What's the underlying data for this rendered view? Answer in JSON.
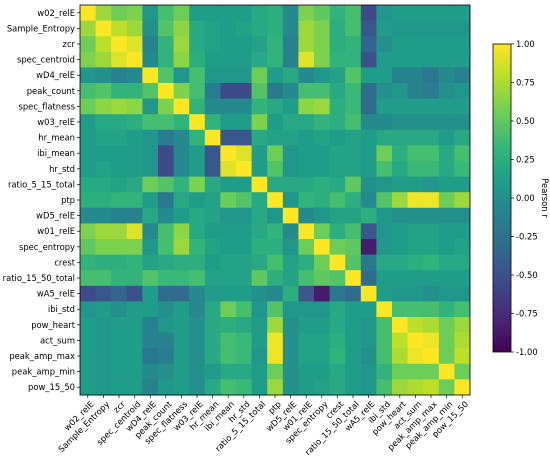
{
  "chart_data": {
    "type": "heatmap",
    "title": "",
    "labels": [
      "w02_relE",
      "Sample_Entropy",
      "zcr",
      "spec_centroid",
      "wD4_relE",
      "peak_count",
      "spec_flatness",
      "w03_relE",
      "hr_mean",
      "ibi_mean",
      "hr_std",
      "ratio_5_15_total",
      "ptp",
      "wD5_relE",
      "w01_relE",
      "spec_entropy",
      "crest",
      "ratio_15_50_total",
      "wA5_relE",
      "ibi_std",
      "pow_heart",
      "act_sum",
      "peak_amp_max",
      "peak_amp_min",
      "pow_15_50"
    ],
    "colorbar": {
      "label": "Pearson r",
      "vmin": -1.0,
      "vmax": 1.0,
      "ticks": [
        "1.00",
        "0.75",
        "0.50",
        "0.25",
        "0.00",
        "-0.25",
        "-0.50",
        "-0.75",
        "-1.00"
      ],
      "colormap": "viridis",
      "colors": [
        "#440154",
        "#482878",
        "#3e4989",
        "#31688e",
        "#26828e",
        "#1f9e89",
        "#35b779",
        "#6ece58",
        "#b5de2b",
        "#fde725"
      ]
    },
    "matrix": [
      [
        1.0,
        0.7,
        0.55,
        0.6,
        0.05,
        0.4,
        0.55,
        0.1,
        0.1,
        0.1,
        0.1,
        0.2,
        0.25,
        -0.05,
        0.6,
        0.5,
        0.3,
        0.4,
        -0.55,
        0.05,
        0.1,
        0.1,
        0.1,
        0.1,
        0.1
      ],
      [
        0.7,
        1.0,
        0.8,
        0.7,
        0.0,
        0.45,
        0.65,
        0.2,
        0.15,
        0.1,
        0.15,
        0.2,
        0.25,
        -0.05,
        0.7,
        0.6,
        0.25,
        0.4,
        -0.45,
        0.1,
        0.05,
        0.05,
        0.05,
        0.05,
        0.05
      ],
      [
        0.55,
        0.8,
        1.0,
        0.9,
        -0.1,
        0.3,
        0.7,
        0.2,
        0.15,
        0.1,
        0.1,
        0.15,
        0.3,
        -0.1,
        0.7,
        0.6,
        0.25,
        0.3,
        -0.35,
        0.0,
        0.1,
        0.1,
        0.1,
        0.1,
        0.1
      ],
      [
        0.6,
        0.7,
        0.9,
        1.0,
        -0.05,
        0.3,
        0.65,
        0.25,
        0.1,
        0.1,
        0.1,
        0.2,
        0.3,
        -0.1,
        0.9,
        0.6,
        0.3,
        0.3,
        -0.5,
        0.1,
        0.1,
        0.1,
        0.1,
        0.1,
        0.1
      ],
      [
        0.05,
        0.0,
        -0.1,
        -0.05,
        1.0,
        0.45,
        0.05,
        0.4,
        0.05,
        0.05,
        0.05,
        0.55,
        0.1,
        0.2,
        -0.05,
        0.05,
        0.15,
        0.45,
        0.1,
        0.1,
        -0.1,
        -0.1,
        -0.2,
        -0.05,
        -0.1
      ],
      [
        0.4,
        0.45,
        0.3,
        0.3,
        0.45,
        1.0,
        0.6,
        0.4,
        -0.15,
        -0.55,
        -0.55,
        0.45,
        -0.2,
        -0.05,
        0.4,
        0.4,
        0.2,
        0.35,
        -0.3,
        0.0,
        0.05,
        -0.1,
        -0.15,
        0.0,
        0.05
      ],
      [
        0.55,
        0.65,
        0.7,
        0.65,
        0.05,
        0.6,
        1.0,
        0.3,
        -0.05,
        -0.05,
        -0.05,
        0.3,
        0.2,
        0.1,
        0.65,
        0.7,
        0.25,
        0.35,
        -0.3,
        0.1,
        0.1,
        0.1,
        0.1,
        0.1,
        0.1
      ],
      [
        0.1,
        0.2,
        0.2,
        0.25,
        0.4,
        0.4,
        0.3,
        1.0,
        0.3,
        0.1,
        0.1,
        0.6,
        0.1,
        0.2,
        0.2,
        0.3,
        0.25,
        0.4,
        -0.05,
        -0.05,
        0.0,
        0.0,
        0.0,
        0.0,
        0.0
      ],
      [
        0.1,
        0.15,
        0.15,
        0.1,
        0.05,
        -0.15,
        -0.05,
        0.3,
        1.0,
        -0.45,
        -0.45,
        0.2,
        0.15,
        0.15,
        0.1,
        0.15,
        0.1,
        0.15,
        0.1,
        0.2,
        0.2,
        0.2,
        0.2,
        0.1,
        0.2
      ],
      [
        0.1,
        0.1,
        0.1,
        0.1,
        0.05,
        -0.55,
        -0.05,
        0.1,
        -0.45,
        1.0,
        0.9,
        0.1,
        0.55,
        0.05,
        0.1,
        0.1,
        0.15,
        0.15,
        0.1,
        0.55,
        0.25,
        0.4,
        0.4,
        0.2,
        0.4
      ],
      [
        0.1,
        0.15,
        0.1,
        0.1,
        0.05,
        -0.55,
        -0.05,
        0.1,
        -0.45,
        0.9,
        1.0,
        0.1,
        0.45,
        0.05,
        0.1,
        0.1,
        0.15,
        0.15,
        0.1,
        0.4,
        0.2,
        0.35,
        0.35,
        0.2,
        0.35
      ],
      [
        0.2,
        0.2,
        0.15,
        0.2,
        0.55,
        0.45,
        0.3,
        0.6,
        0.2,
        0.1,
        0.1,
        1.0,
        0.2,
        0.2,
        0.2,
        0.25,
        0.2,
        0.5,
        0.0,
        0.05,
        0.1,
        0.1,
        0.05,
        0.1,
        0.1
      ],
      [
        0.25,
        0.25,
        0.3,
        0.3,
        0.1,
        -0.2,
        0.2,
        0.1,
        0.15,
        0.55,
        0.45,
        0.2,
        1.0,
        0.05,
        0.3,
        0.25,
        0.4,
        0.25,
        -0.05,
        0.45,
        0.7,
        0.95,
        0.95,
        0.55,
        0.7
      ],
      [
        -0.05,
        -0.05,
        -0.1,
        -0.1,
        0.2,
        -0.05,
        0.1,
        0.2,
        0.15,
        0.05,
        0.05,
        0.2,
        0.05,
        1.0,
        -0.05,
        0.05,
        0.15,
        0.15,
        0.25,
        0.05,
        0.0,
        0.0,
        0.0,
        0.0,
        0.0
      ],
      [
        0.6,
        0.7,
        0.7,
        0.9,
        -0.05,
        0.4,
        0.65,
        0.2,
        0.1,
        0.1,
        0.1,
        0.2,
        0.3,
        -0.05,
        1.0,
        0.55,
        0.25,
        0.4,
        -0.45,
        0.05,
        0.1,
        0.15,
        0.15,
        0.1,
        0.1
      ],
      [
        0.5,
        0.6,
        0.6,
        0.6,
        0.05,
        0.4,
        0.7,
        0.3,
        0.15,
        0.1,
        0.1,
        0.25,
        0.25,
        0.05,
        0.55,
        1.0,
        0.55,
        0.5,
        -0.85,
        0.05,
        0.1,
        0.15,
        0.15,
        0.1,
        0.15
      ],
      [
        0.3,
        0.25,
        0.25,
        0.3,
        0.15,
        0.2,
        0.25,
        0.25,
        0.1,
        0.15,
        0.15,
        0.2,
        0.4,
        0.15,
        0.25,
        0.55,
        1.0,
        0.45,
        -0.2,
        0.2,
        0.2,
        0.25,
        0.3,
        0.2,
        0.2
      ],
      [
        0.4,
        0.4,
        0.3,
        0.3,
        0.45,
        0.35,
        0.35,
        0.4,
        0.15,
        0.15,
        0.15,
        0.5,
        0.25,
        0.15,
        0.4,
        0.5,
        0.45,
        1.0,
        -0.3,
        0.1,
        0.1,
        0.1,
        0.1,
        0.1,
        0.1
      ],
      [
        -0.55,
        -0.45,
        -0.35,
        -0.5,
        0.1,
        -0.3,
        -0.3,
        -0.05,
        0.1,
        0.1,
        0.1,
        0.0,
        -0.05,
        0.25,
        -0.45,
        -0.85,
        -0.2,
        -0.3,
        1.0,
        0.1,
        0.05,
        0.05,
        0.0,
        0.05,
        0.05
      ],
      [
        0.05,
        0.1,
        0.0,
        0.1,
        0.1,
        0.0,
        0.1,
        -0.05,
        0.2,
        0.55,
        0.4,
        0.05,
        0.45,
        0.05,
        0.05,
        0.05,
        0.2,
        0.1,
        0.1,
        1.0,
        0.4,
        0.4,
        0.4,
        0.3,
        0.4
      ],
      [
        0.1,
        0.05,
        0.1,
        0.1,
        -0.1,
        0.05,
        0.1,
        0.0,
        0.2,
        0.25,
        0.2,
        0.1,
        0.7,
        0.0,
        0.1,
        0.1,
        0.2,
        0.1,
        0.05,
        0.4,
        1.0,
        0.8,
        0.75,
        0.55,
        0.7
      ],
      [
        0.1,
        0.05,
        0.1,
        0.1,
        -0.1,
        -0.1,
        0.1,
        0.0,
        0.2,
        0.4,
        0.35,
        0.1,
        0.95,
        0.0,
        0.15,
        0.15,
        0.25,
        0.1,
        0.05,
        0.4,
        0.8,
        1.0,
        0.95,
        0.55,
        0.75
      ],
      [
        0.1,
        0.05,
        0.1,
        0.1,
        -0.2,
        -0.15,
        0.1,
        0.0,
        0.2,
        0.4,
        0.35,
        0.05,
        0.95,
        0.0,
        0.15,
        0.15,
        0.3,
        0.1,
        0.0,
        0.4,
        0.75,
        0.95,
        1.0,
        0.55,
        0.8
      ],
      [
        0.1,
        0.05,
        0.1,
        0.1,
        -0.05,
        0.0,
        0.1,
        0.0,
        0.1,
        0.2,
        0.2,
        0.1,
        0.55,
        0.0,
        0.1,
        0.1,
        0.2,
        0.1,
        0.05,
        0.3,
        0.55,
        0.55,
        0.55,
        1.0,
        0.55
      ],
      [
        0.1,
        0.05,
        0.1,
        0.1,
        -0.1,
        0.05,
        0.1,
        0.0,
        0.2,
        0.4,
        0.35,
        0.1,
        0.7,
        0.0,
        0.1,
        0.15,
        0.2,
        0.1,
        0.05,
        0.4,
        0.7,
        0.75,
        0.8,
        0.55,
        1.0
      ]
    ]
  }
}
